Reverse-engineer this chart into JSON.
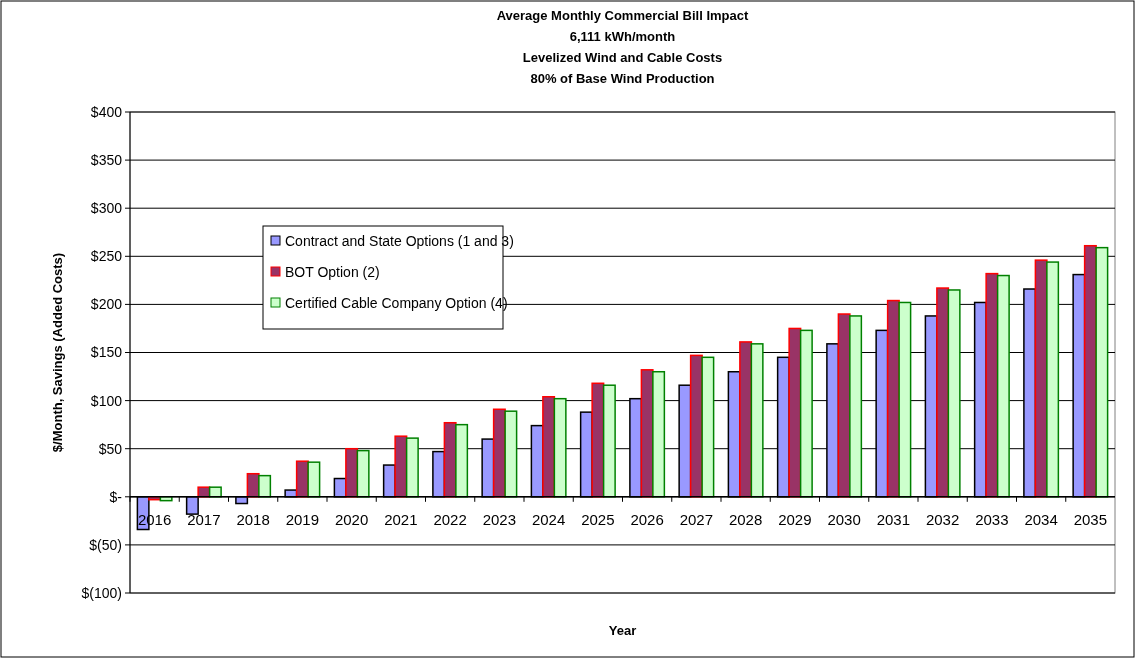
{
  "chart_data": {
    "type": "bar",
    "title": "Average Monthly Commercial Bill Impact\n6,111 kWh/month\nLevelized Wind and Cable Costs\n80% of Base Wind Production",
    "xlabel": "Year",
    "ylabel": "$/Month, Savings (Added Costs)",
    "categories": [
      "2016",
      "2017",
      "2018",
      "2019",
      "2020",
      "2021",
      "2022",
      "2023",
      "2024",
      "2025",
      "2026",
      "2027",
      "2028",
      "2029",
      "2030",
      "2031",
      "2032",
      "2033",
      "2034",
      "2035"
    ],
    "series": [
      {
        "name": "Contract and State Options (1 and 3)",
        "color": "#9999ff",
        "values": [
          -34,
          -18,
          -7,
          7,
          19,
          33,
          47,
          60,
          74,
          88,
          102,
          116,
          130,
          145,
          159,
          173,
          188,
          202,
          216,
          231
        ]
      },
      {
        "name": "BOT Option (2)",
        "color": "#993366",
        "values": [
          -3,
          10,
          24,
          37,
          50,
          63,
          77,
          91,
          104,
          118,
          132,
          147,
          161,
          175,
          190,
          204,
          217,
          232,
          246,
          261
        ]
      },
      {
        "name": "Certified Cable Company Option (4)",
        "color": "#ccffcc",
        "values": [
          -4,
          10,
          22,
          36,
          48,
          61,
          75,
          89,
          102,
          116,
          130,
          145,
          159,
          173,
          188,
          202,
          215,
          230,
          244,
          259
        ]
      }
    ],
    "ylim": [
      -100,
      400
    ],
    "yticks": [
      {
        "value": -100,
        "label": "$(100)"
      },
      {
        "value": -50,
        "label": "$(50)"
      },
      {
        "value": 0,
        "label": "$-"
      },
      {
        "value": 50,
        "label": "$50"
      },
      {
        "value": 100,
        "label": "$100"
      },
      {
        "value": 150,
        "label": "$150"
      },
      {
        "value": 200,
        "label": "$200"
      },
      {
        "value": 250,
        "label": "$250"
      },
      {
        "value": 300,
        "label": "$300"
      },
      {
        "value": 350,
        "label": "$350"
      },
      {
        "value": 400,
        "label": "$400"
      }
    ],
    "grid": "y",
    "legend": "top left"
  }
}
